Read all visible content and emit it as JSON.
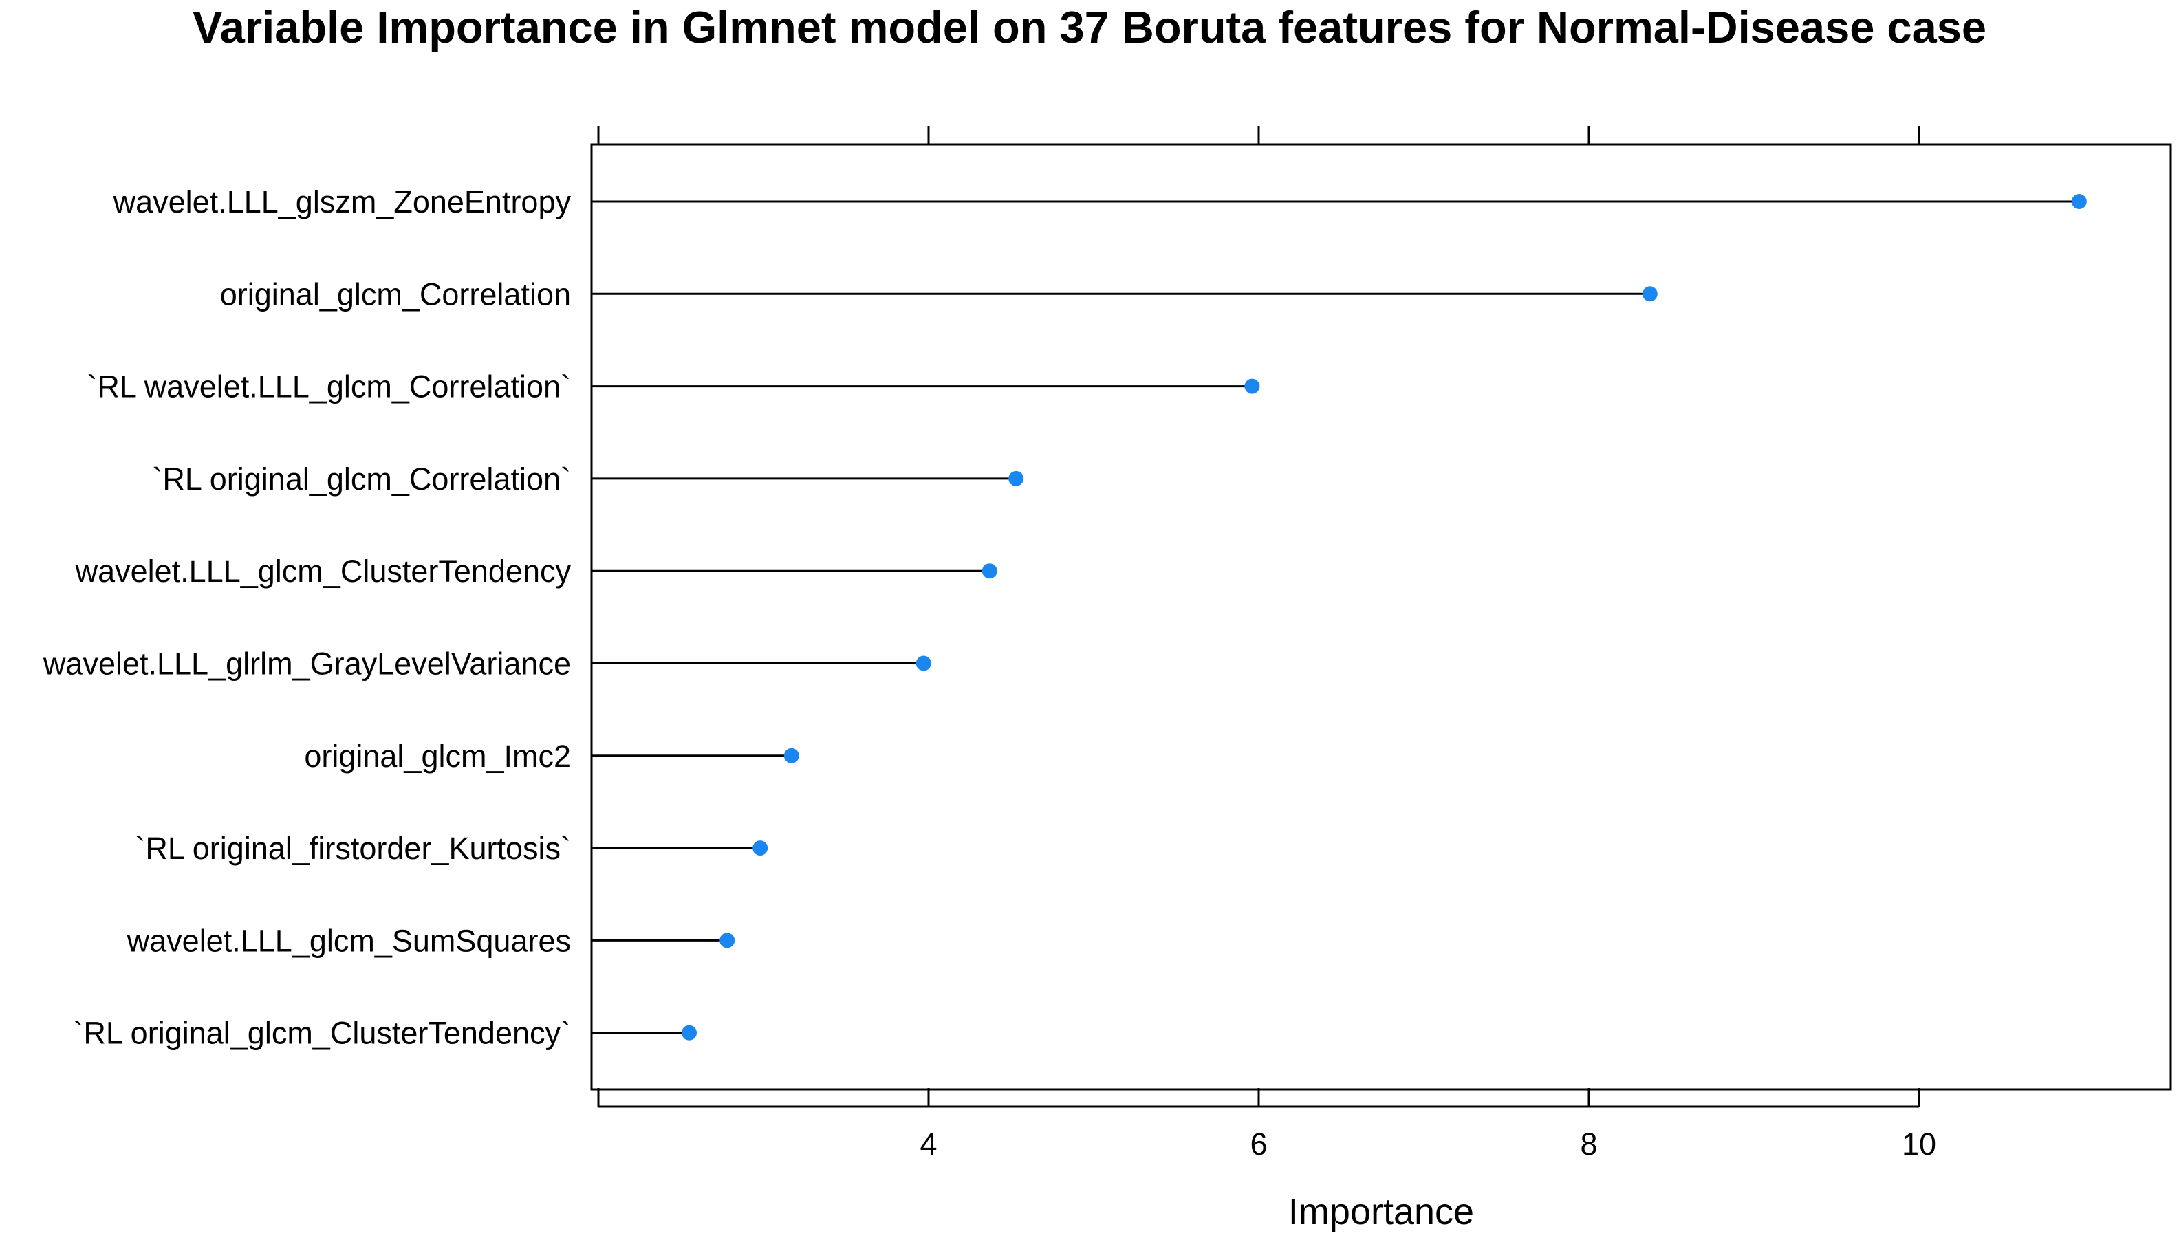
{
  "chart_data": {
    "type": "scatter",
    "subtype": "dot-plot-with-stems",
    "title": "Variable Importance in Glmnet model on 37 Boruta features for Normal-Disease case",
    "xlabel": "Importance",
    "ylabel": "",
    "xlim": [
      2.0,
      11.3
    ],
    "xticks": [
      4,
      6,
      8,
      10
    ],
    "grid": false,
    "legend": "none",
    "categories": [
      "wavelet.LLL_glszm_ZoneEntropy",
      "original_glcm_Correlation",
      "`RL wavelet.LLL_glcm_Correlation`",
      "`RL original_glcm_Correlation`",
      "wavelet.LLL_glcm_ClusterTendency",
      "wavelet.LLL_glrlm_GrayLevelVariance",
      "original_glcm_Imc2",
      "`RL original_firstorder_Kurtosis`",
      "wavelet.LLL_glcm_SumSquares",
      "`RL original_glcm_ClusterTendency`"
    ],
    "values": [
      10.97,
      8.37,
      5.96,
      4.53,
      4.37,
      3.97,
      3.17,
      2.98,
      2.78,
      2.55
    ],
    "colors": {
      "point": "#1a86f0",
      "stem": "#000000",
      "axis": "#000000"
    }
  }
}
